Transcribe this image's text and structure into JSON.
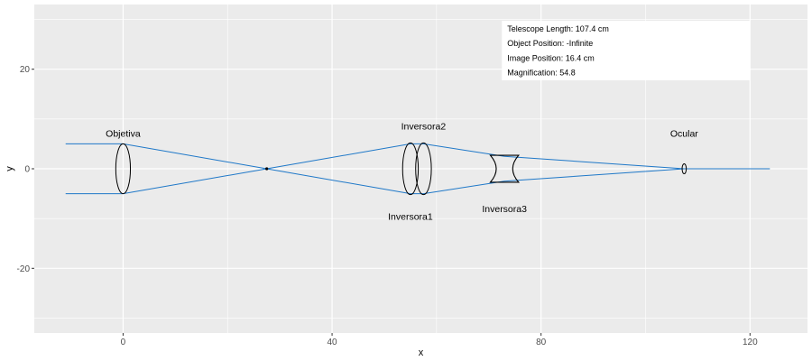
{
  "chart_data": {
    "type": "line",
    "title": "",
    "xlabel": "x",
    "ylabel": "y",
    "xlim": [
      -17,
      131
    ],
    "ylim": [
      -33,
      33
    ],
    "x_ticks": [
      0,
      40,
      80,
      120
    ],
    "y_ticks": [
      -20,
      0,
      20
    ],
    "grid": true,
    "colors": {
      "panel": "#ebebeb",
      "grid": "#ffffff",
      "ray": "#1f78c8",
      "lens": "#000000"
    },
    "rays": [
      {
        "points": [
          [
            -11,
            5
          ],
          [
            0,
            5
          ],
          [
            27.5,
            0
          ],
          [
            55,
            -5
          ],
          [
            57.5,
            -5
          ],
          [
            73,
            -2.5
          ],
          [
            107.4,
            0
          ]
        ]
      },
      {
        "points": [
          [
            -11,
            -5
          ],
          [
            0,
            -5
          ],
          [
            27.5,
            0
          ],
          [
            55,
            5
          ],
          [
            57.5,
            5
          ],
          [
            73,
            2.5
          ],
          [
            107.4,
            0
          ]
        ]
      },
      {
        "points": [
          [
            107.4,
            0
          ],
          [
            123.8,
            0
          ]
        ]
      }
    ],
    "lenses": [
      {
        "name": "Objetiva",
        "type": "convex",
        "x": 0,
        "half_height": 5,
        "half_width": 1.4
      },
      {
        "name": "Inversora1",
        "type": "convex",
        "x": 55,
        "half_height": 5.2,
        "half_width": 1.5
      },
      {
        "name": "Inversora2",
        "type": "convex",
        "x": 57.5,
        "half_height": 5.2,
        "half_width": 1.5
      },
      {
        "name": "Inversora3",
        "type": "concave",
        "x": 73,
        "half_height": 2.7,
        "half_width": 1.5
      },
      {
        "name": "Ocular",
        "type": "convex",
        "x": 107.4,
        "half_height": 1,
        "half_width": 0.4
      }
    ],
    "annotations": [
      {
        "text": "Objetiva",
        "x": 0,
        "y": 7.2
      },
      {
        "text": "Inversora2",
        "x": 57.5,
        "y": 8.6
      },
      {
        "text": "Inversora1",
        "x": 55,
        "y": -9.5
      },
      {
        "text": "Inversora3",
        "x": 73,
        "y": -8
      },
      {
        "text": "Ocular",
        "x": 107.4,
        "y": 7.2
      }
    ],
    "info_box": [
      "Telescope Length: 107.4 cm",
      "Object Position: -Infinite",
      "Image Position: 16.4 cm",
      "Magnification: 54.8"
    ]
  }
}
